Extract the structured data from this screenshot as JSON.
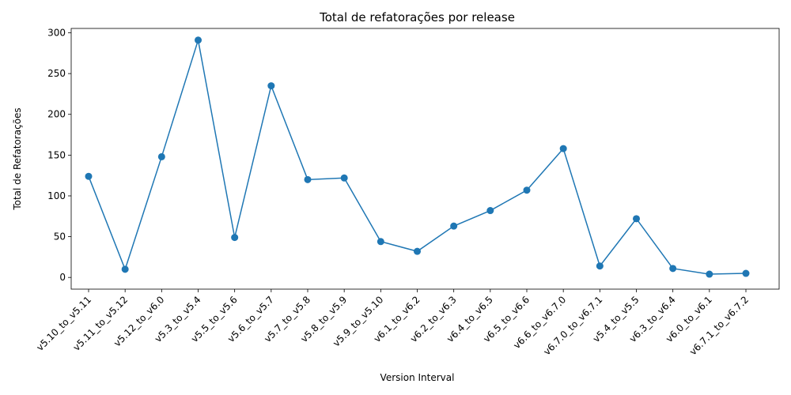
{
  "chart_data": {
    "type": "line",
    "title": "Total de refatorações por release",
    "xlabel": "Version Interval",
    "ylabel": "Total de Refatorações",
    "categories": [
      "v5.10_to_v5.11",
      "v5.11_to_v5.12",
      "v5.12_to_v6.0",
      "v5.3_to_v5.4",
      "v5.5_to_v5.6",
      "v5.6_to_v5.7",
      "v5.7_to_v5.8",
      "v5.8_to_v5.9",
      "v5.9_to_v5.10",
      "v6.1_to_v6.2",
      "v6.2_to_v6.3",
      "v6.4_to_v6.5",
      "v6.5_to_v6.6",
      "v6.6_to_v6.7.0",
      "v6.7.0_to_v6.7.1",
      "v5.4_to_v5.5",
      "v6.3_to_v6.4",
      "v6.0_to_v6.1",
      "v6.7.1_to_v6.7.2"
    ],
    "values": [
      124,
      10,
      148,
      291,
      49,
      235,
      120,
      122,
      44,
      32,
      63,
      82,
      107,
      158,
      14,
      72,
      11,
      4,
      5
    ],
    "yticks": [
      0,
      50,
      100,
      150,
      200,
      250,
      300
    ],
    "ylim": [
      -14.35,
      305.35
    ],
    "grid": false,
    "color": "#1f77b4"
  }
}
